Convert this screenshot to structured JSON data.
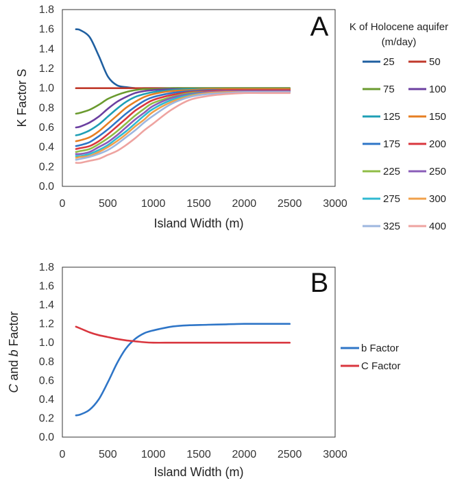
{
  "chart_data": [
    {
      "panel": "A",
      "type": "line",
      "xlabel": "Island Width (m)",
      "ylabel": "K Factor S",
      "xlim": [
        0,
        3000
      ],
      "ylim": [
        0,
        1.8
      ],
      "xticks": [
        0,
        500,
        1000,
        1500,
        2000,
        2500,
        3000
      ],
      "yticks": [
        "0.0",
        "0.2",
        "0.4",
        "0.6",
        "0.8",
        "1.0",
        "1.2",
        "1.4",
        "1.6",
        "1.8"
      ],
      "grid": false,
      "legend": {
        "title_line1": "K of Holocene aquifer",
        "title_line2": "(m/day)",
        "placement": "right",
        "columns": 2
      },
      "x": [
        150,
        200,
        300,
        400,
        500,
        600,
        700,
        800,
        900,
        1000,
        1200,
        1400,
        1600,
        1800,
        2000,
        2200,
        2500
      ],
      "series": [
        {
          "name": "25",
          "color": "#1f5fa0",
          "values": [
            1.6,
            1.59,
            1.52,
            1.33,
            1.12,
            1.03,
            1.01,
            1.0,
            1.0,
            1.0,
            1.0,
            1.0,
            1.0,
            1.0,
            1.0,
            1.0,
            1.0
          ]
        },
        {
          "name": "50",
          "color": "#c0392b",
          "values": [
            1.0,
            1.0,
            1.0,
            1.0,
            1.0,
            1.0,
            1.0,
            1.0,
            1.0,
            1.0,
            1.0,
            1.0,
            1.0,
            1.0,
            1.0,
            1.0,
            1.0
          ]
        },
        {
          "name": "75",
          "color": "#6a9a2e",
          "values": [
            0.74,
            0.75,
            0.78,
            0.83,
            0.89,
            0.93,
            0.96,
            0.98,
            0.99,
            0.99,
            1.0,
            1.0,
            1.0,
            1.0,
            1.0,
            1.0,
            1.0
          ]
        },
        {
          "name": "100",
          "color": "#6b3fa0",
          "values": [
            0.6,
            0.61,
            0.65,
            0.71,
            0.79,
            0.86,
            0.91,
            0.95,
            0.97,
            0.98,
            0.99,
            0.99,
            0.99,
            0.99,
            0.99,
            0.99,
            0.99
          ]
        },
        {
          "name": "125",
          "color": "#1e9fb5",
          "values": [
            0.52,
            0.53,
            0.57,
            0.63,
            0.71,
            0.79,
            0.86,
            0.91,
            0.94,
            0.96,
            0.98,
            0.99,
            0.99,
            0.99,
            0.99,
            0.99,
            0.99
          ]
        },
        {
          "name": "150",
          "color": "#e67e22",
          "values": [
            0.46,
            0.47,
            0.5,
            0.56,
            0.64,
            0.72,
            0.8,
            0.86,
            0.91,
            0.94,
            0.97,
            0.98,
            0.99,
            0.99,
            0.99,
            0.99,
            0.99
          ]
        },
        {
          "name": "175",
          "color": "#2e75c7",
          "values": [
            0.41,
            0.42,
            0.45,
            0.51,
            0.58,
            0.66,
            0.74,
            0.81,
            0.87,
            0.91,
            0.95,
            0.97,
            0.98,
            0.98,
            0.98,
            0.98,
            0.98
          ]
        },
        {
          "name": "200",
          "color": "#d9363e",
          "values": [
            0.38,
            0.39,
            0.41,
            0.46,
            0.53,
            0.61,
            0.69,
            0.77,
            0.83,
            0.88,
            0.93,
            0.96,
            0.97,
            0.98,
            0.98,
            0.98,
            0.98
          ]
        },
        {
          "name": "225",
          "color": "#8fbc45",
          "values": [
            0.35,
            0.36,
            0.38,
            0.43,
            0.49,
            0.56,
            0.64,
            0.72,
            0.79,
            0.85,
            0.91,
            0.95,
            0.96,
            0.97,
            0.97,
            0.97,
            0.97
          ]
        },
        {
          "name": "250",
          "color": "#8a5cb8",
          "values": [
            0.33,
            0.33,
            0.35,
            0.4,
            0.45,
            0.52,
            0.6,
            0.68,
            0.75,
            0.82,
            0.9,
            0.94,
            0.96,
            0.97,
            0.97,
            0.97,
            0.97
          ]
        },
        {
          "name": "275",
          "color": "#2fb9d1",
          "values": [
            0.31,
            0.31,
            0.33,
            0.37,
            0.42,
            0.49,
            0.56,
            0.64,
            0.72,
            0.79,
            0.88,
            0.93,
            0.95,
            0.96,
            0.96,
            0.96,
            0.96
          ]
        },
        {
          "name": "300",
          "color": "#f0a04b",
          "values": [
            0.29,
            0.3,
            0.31,
            0.35,
            0.4,
            0.46,
            0.53,
            0.61,
            0.68,
            0.76,
            0.86,
            0.92,
            0.95,
            0.96,
            0.96,
            0.96,
            0.96
          ]
        },
        {
          "name": "325",
          "color": "#9db6df",
          "values": [
            0.27,
            0.28,
            0.3,
            0.33,
            0.37,
            0.43,
            0.5,
            0.57,
            0.65,
            0.72,
            0.84,
            0.91,
            0.94,
            0.95,
            0.96,
            0.96,
            0.96
          ]
        },
        {
          "name": "400",
          "color": "#eea3a0",
          "values": [
            0.24,
            0.24,
            0.26,
            0.28,
            0.32,
            0.36,
            0.42,
            0.49,
            0.57,
            0.64,
            0.78,
            0.88,
            0.92,
            0.94,
            0.95,
            0.95,
            0.95
          ]
        }
      ]
    },
    {
      "panel": "B",
      "type": "line",
      "xlabel": "Island Width (m)",
      "ylabel_parts": [
        {
          "text": "C",
          "italic": true
        },
        {
          "text": " and ",
          "italic": false
        },
        {
          "text": "b",
          "italic": true
        },
        {
          "text": " Factor",
          "italic": false
        }
      ],
      "xlim": [
        0,
        3000
      ],
      "ylim": [
        0,
        1.8
      ],
      "xticks": [
        0,
        500,
        1000,
        1500,
        2000,
        2500,
        3000
      ],
      "yticks": [
        "0.0",
        "0.2",
        "0.4",
        "0.6",
        "0.8",
        "1.0",
        "1.2",
        "1.4",
        "1.6",
        "1.8"
      ],
      "grid": false,
      "legend": {
        "placement": "right"
      },
      "x": [
        150,
        200,
        300,
        400,
        500,
        600,
        700,
        800,
        900,
        1000,
        1200,
        1400,
        1600,
        1800,
        2000,
        2200,
        2500
      ],
      "series": [
        {
          "name": "b Factor",
          "color": "#2e75c7",
          "values": [
            0.23,
            0.24,
            0.29,
            0.4,
            0.58,
            0.78,
            0.94,
            1.04,
            1.1,
            1.13,
            1.17,
            1.185,
            1.19,
            1.195,
            1.2,
            1.2,
            1.2
          ]
        },
        {
          "name": "C Factor",
          "color": "#d9363e",
          "values": [
            1.17,
            1.15,
            1.11,
            1.08,
            1.06,
            1.04,
            1.025,
            1.015,
            1.005,
            1.0,
            1.0,
            1.0,
            1.0,
            1.0,
            1.0,
            1.0,
            1.0
          ]
        }
      ]
    }
  ]
}
